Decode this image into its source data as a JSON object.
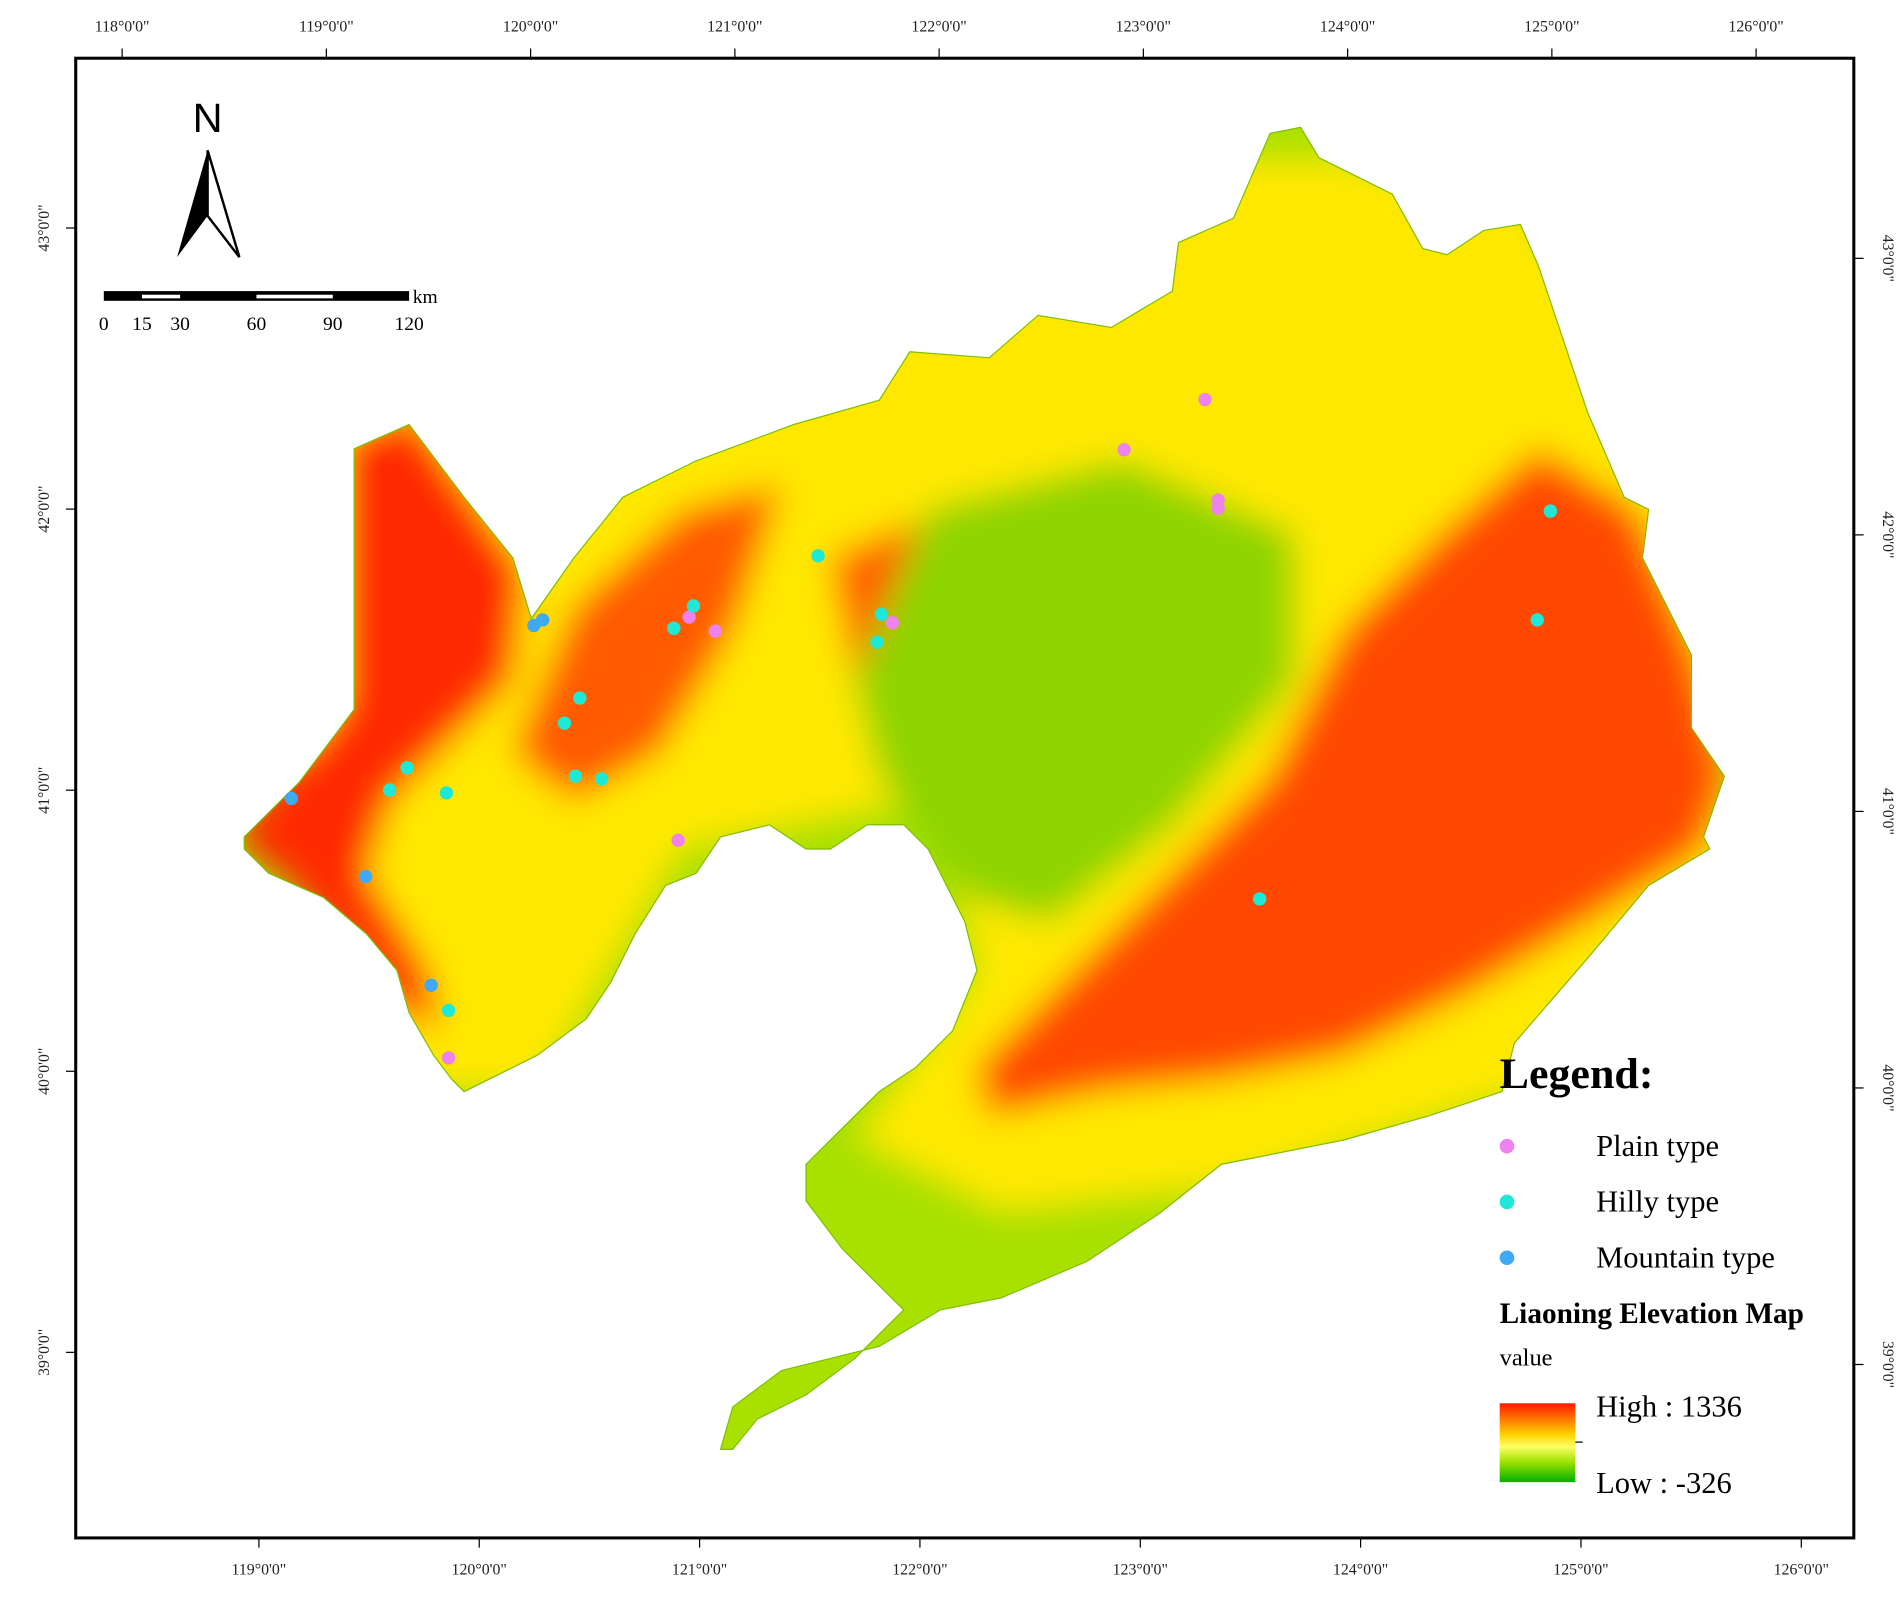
{
  "map": {
    "type": "point-map",
    "north_label": "N",
    "scale_bar": {
      "ticks": [
        0,
        15,
        30,
        60,
        90,
        120
      ],
      "unit": "km"
    },
    "top_ticks": [
      {
        "value": 118,
        "label": "118°0'0\""
      },
      {
        "value": 119,
        "label": "119°0'0\""
      },
      {
        "value": 120,
        "label": "120°0'0\""
      },
      {
        "value": 121,
        "label": "121°0'0\""
      },
      {
        "value": 122,
        "label": "122°0'0\""
      },
      {
        "value": 123,
        "label": "123°0'0\""
      },
      {
        "value": 124,
        "label": "124°0'0\""
      },
      {
        "value": 125,
        "label": "125°0'0\""
      },
      {
        "value": 126,
        "label": "126°0'0\""
      }
    ],
    "bottom_ticks": [
      {
        "value": 119,
        "label": "119°0'0\""
      },
      {
        "value": 120,
        "label": "120°0'0\""
      },
      {
        "value": 121,
        "label": "121°0'0\""
      },
      {
        "value": 122,
        "label": "122°0'0\""
      },
      {
        "value": 123,
        "label": "123°0'0\""
      },
      {
        "value": 124,
        "label": "124°0'0\""
      },
      {
        "value": 125,
        "label": "125°0'0\""
      },
      {
        "value": 126,
        "label": "126°0'0\""
      }
    ],
    "left_ticks": [
      {
        "value": 43,
        "label": "43°0'0\""
      },
      {
        "value": 42,
        "label": "42°0'0\""
      },
      {
        "value": 41,
        "label": "41°0'0\""
      },
      {
        "value": 40,
        "label": "40°0'0\""
      },
      {
        "value": 39,
        "label": "39°0'0\""
      }
    ],
    "right_ticks": [
      {
        "value": 43,
        "label": "43°0'0\""
      },
      {
        "value": 42,
        "label": "42°0'0\""
      },
      {
        "value": 41,
        "label": "41°0'0\""
      },
      {
        "value": 40,
        "label": "40°0'0\""
      },
      {
        "value": 39,
        "label": "39°0'0\""
      }
    ],
    "legend_title": "Legend:",
    "series": [
      {
        "name": "Plain type",
        "color": "#ee82ee",
        "lon": [
          123.3,
          122.93,
          123.36,
          123.36,
          120.94,
          121.06,
          121.87,
          120.89,
          119.84
        ],
        "lat": [
          42.42,
          42.24,
          42.06,
          42.03,
          41.64,
          41.59,
          41.62,
          40.84,
          40.06
        ]
      },
      {
        "name": "Hilly type",
        "color": "#1de9d6",
        "lon": [
          120.96,
          120.87,
          121.53,
          121.82,
          121.8,
          120.44,
          120.37,
          120.42,
          120.54,
          119.65,
          119.57,
          119.83,
          119.84,
          124.88,
          124.82,
          123.55
        ],
        "lat": [
          41.68,
          41.6,
          41.86,
          41.65,
          41.55,
          41.35,
          41.26,
          41.07,
          41.06,
          41.1,
          41.02,
          41.01,
          40.23,
          42.02,
          41.63,
          40.63
        ]
      },
      {
        "name": "Mountain type",
        "color": "#3fa9f5",
        "lon": [
          120.23,
          120.27,
          119.12,
          119.46,
          119.76
        ],
        "lat": [
          41.61,
          41.63,
          40.99,
          40.71,
          40.32
        ]
      }
    ],
    "elevation_title": "Liaoning Elevation Map",
    "elevation_field": "value",
    "elevation_high": "High : 1336",
    "elevation_low": "Low : -326"
  }
}
